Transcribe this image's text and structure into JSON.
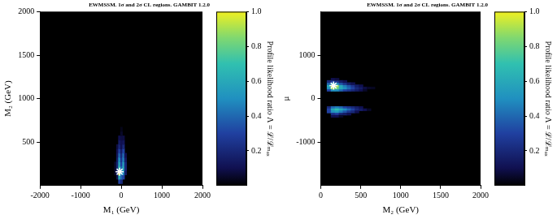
{
  "chart_data": [
    {
      "type": "heatmap",
      "title": "EWMSSM. 1σ and 2σ CL regions. GAMBIT 1.2.0",
      "x_label": "M₁ (GeV)",
      "y_label": "M₂ (GeV)",
      "xlim": [
        -2000,
        2000
      ],
      "ylim": [
        0,
        2000
      ],
      "xticks": [
        -2000,
        -1000,
        0,
        1000,
        2000
      ],
      "yticks": [
        500,
        1000,
        1500,
        2000
      ],
      "cells": [
        [
          -150,
          150,
          0.05
        ],
        [
          -150,
          200,
          0.05
        ],
        [
          -150,
          250,
          0.05
        ],
        [
          -100,
          100,
          0.1
        ],
        [
          -100,
          150,
          0.2
        ],
        [
          -100,
          200,
          0.2
        ],
        [
          -100,
          250,
          0.18
        ],
        [
          -100,
          300,
          0.15
        ],
        [
          -100,
          350,
          0.12
        ],
        [
          -100,
          400,
          0.1
        ],
        [
          -100,
          450,
          0.08
        ],
        [
          -50,
          50,
          0.3
        ],
        [
          -50,
          100,
          0.6
        ],
        [
          -50,
          150,
          1.0
        ],
        [
          -50,
          200,
          0.7
        ],
        [
          -50,
          250,
          0.6
        ],
        [
          -50,
          300,
          0.5
        ],
        [
          -50,
          350,
          0.4
        ],
        [
          -50,
          400,
          0.3
        ],
        [
          -50,
          450,
          0.2
        ],
        [
          -50,
          500,
          0.15
        ],
        [
          -50,
          550,
          0.1
        ],
        [
          0,
          50,
          0.2
        ],
        [
          0,
          100,
          0.4
        ],
        [
          0,
          150,
          0.5
        ],
        [
          0,
          200,
          0.4
        ],
        [
          0,
          250,
          0.3
        ],
        [
          0,
          300,
          0.25
        ],
        [
          0,
          350,
          0.2
        ],
        [
          0,
          400,
          0.15
        ],
        [
          0,
          450,
          0.1
        ],
        [
          0,
          500,
          0.1
        ],
        [
          0,
          550,
          0.08
        ],
        [
          0,
          600,
          0.05
        ],
        [
          0,
          650,
          0.03
        ],
        [
          50,
          100,
          0.3
        ],
        [
          50,
          150,
          0.5
        ],
        [
          50,
          200,
          0.6
        ],
        [
          50,
          250,
          0.55
        ],
        [
          50,
          300,
          0.45
        ],
        [
          50,
          350,
          0.4
        ],
        [
          50,
          400,
          0.3
        ],
        [
          50,
          450,
          0.2
        ],
        [
          50,
          500,
          0.12
        ],
        [
          50,
          550,
          0.08
        ],
        [
          100,
          150,
          0.15
        ],
        [
          100,
          200,
          0.2
        ],
        [
          100,
          250,
          0.2
        ],
        [
          100,
          300,
          0.15
        ],
        [
          100,
          350,
          0.1
        ]
      ],
      "best_fit": {
        "x": -40,
        "y": 160,
        "marker": "star",
        "color": "#ffffff"
      },
      "colorbar": {
        "label": "Profile likelihood ratio Λ = ℒ/ℒₘₐₓ",
        "range": [
          0,
          1
        ],
        "ticks": [
          0.2,
          0.4,
          0.6,
          0.8,
          {
            "value": 1,
            "label": "1.0"
          }
        ]
      }
    },
    {
      "type": "heatmap",
      "title": "EWMSSM. 1σ and 2σ CL regions. GAMBIT 1.2.0",
      "x_label": "M₂ (GeV)",
      "y_label": "μ",
      "xlim": [
        0,
        2000
      ],
      "ylim": [
        -2000,
        2000
      ],
      "xticks": [
        0,
        500,
        1000,
        1500,
        2000
      ],
      "yticks": [
        -1000,
        0,
        1000
      ],
      "cells": [
        [
          100,
          200,
          0.3
        ],
        [
          150,
          200,
          0.5
        ],
        [
          200,
          200,
          0.5
        ],
        [
          250,
          200,
          0.4
        ],
        [
          300,
          200,
          0.3
        ],
        [
          350,
          200,
          0.25
        ],
        [
          400,
          200,
          0.2
        ],
        [
          450,
          200,
          0.15
        ],
        [
          500,
          200,
          0.1
        ],
        [
          550,
          200,
          0.05
        ],
        [
          100,
          250,
          0.5
        ],
        [
          150,
          250,
          0.9
        ],
        [
          200,
          250,
          0.8
        ],
        [
          250,
          250,
          0.6
        ],
        [
          300,
          250,
          0.5
        ],
        [
          350,
          250,
          0.4
        ],
        [
          400,
          250,
          0.3
        ],
        [
          450,
          250,
          0.2
        ],
        [
          500,
          250,
          0.15
        ],
        [
          550,
          250,
          0.08
        ],
        [
          600,
          250,
          0.05
        ],
        [
          650,
          250,
          0.04
        ],
        [
          100,
          300,
          0.6
        ],
        [
          150,
          300,
          1.0
        ],
        [
          200,
          300,
          0.9
        ],
        [
          250,
          300,
          0.6
        ],
        [
          300,
          300,
          0.45
        ],
        [
          350,
          300,
          0.35
        ],
        [
          400,
          300,
          0.25
        ],
        [
          450,
          300,
          0.15
        ],
        [
          500,
          300,
          0.1
        ],
        [
          100,
          350,
          0.4
        ],
        [
          150,
          350,
          0.6
        ],
        [
          200,
          350,
          0.5
        ],
        [
          250,
          350,
          0.35
        ],
        [
          300,
          350,
          0.25
        ],
        [
          350,
          350,
          0.15
        ],
        [
          400,
          350,
          0.1
        ],
        [
          100,
          400,
          0.2
        ],
        [
          150,
          400,
          0.3
        ],
        [
          200,
          400,
          0.25
        ],
        [
          250,
          400,
          0.15
        ],
        [
          300,
          400,
          0.1
        ],
        [
          150,
          450,
          0.1
        ],
        [
          200,
          450,
          0.08
        ],
        [
          100,
          -200,
          0.2
        ],
        [
          150,
          -200,
          0.4
        ],
        [
          200,
          -200,
          0.45
        ],
        [
          250,
          -200,
          0.4
        ],
        [
          300,
          -200,
          0.3
        ],
        [
          350,
          -200,
          0.25
        ],
        [
          400,
          -200,
          0.2
        ],
        [
          450,
          -200,
          0.15
        ],
        [
          500,
          -200,
          0.1
        ],
        [
          100,
          -250,
          0.3
        ],
        [
          150,
          -250,
          0.6
        ],
        [
          200,
          -250,
          0.7
        ],
        [
          250,
          -250,
          0.6
        ],
        [
          300,
          -250,
          0.5
        ],
        [
          350,
          -250,
          0.4
        ],
        [
          400,
          -250,
          0.3
        ],
        [
          450,
          -250,
          0.2
        ],
        [
          500,
          -250,
          0.15
        ],
        [
          550,
          -250,
          0.1
        ],
        [
          600,
          -250,
          0.05
        ],
        [
          100,
          -300,
          0.3
        ],
        [
          150,
          -300,
          0.5
        ],
        [
          200,
          -300,
          0.55
        ],
        [
          250,
          -300,
          0.45
        ],
        [
          300,
          -300,
          0.35
        ],
        [
          350,
          -300,
          0.25
        ],
        [
          400,
          -300,
          0.2
        ],
        [
          450,
          -300,
          0.1
        ],
        [
          150,
          -350,
          0.25
        ],
        [
          200,
          -350,
          0.3
        ],
        [
          250,
          -350,
          0.2
        ],
        [
          300,
          -350,
          0.15
        ],
        [
          350,
          -350,
          0.1
        ],
        [
          150,
          -400,
          0.1
        ],
        [
          200,
          -400,
          0.1
        ],
        [
          250,
          -400,
          0.05
        ]
      ],
      "best_fit": {
        "x": 160,
        "y": 300,
        "marker": "star",
        "color": "#ffffff"
      },
      "colorbar": {
        "label": "Profile likelihood ratio Λ = ℒ/ℒₘₐₓ",
        "range": [
          0,
          1
        ],
        "ticks": [
          0.2,
          0.4,
          0.6,
          0.8,
          {
            "value": 1,
            "label": "1.0"
          }
        ]
      }
    }
  ]
}
